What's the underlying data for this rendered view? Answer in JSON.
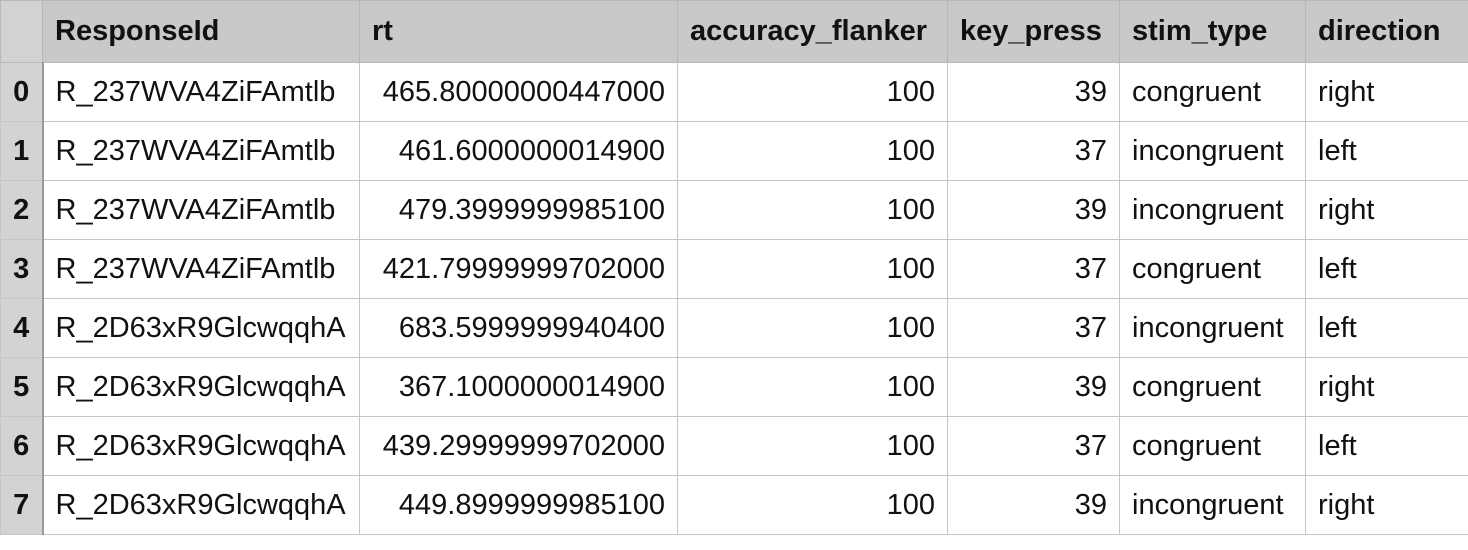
{
  "table": {
    "headers": [
      "ResponseId",
      "rt",
      "accuracy_flanker",
      "key_press",
      "stim_type",
      "direction"
    ],
    "rows": [
      {
        "index": "0",
        "ResponseId": "R_237WVA4ZiFAmtlb",
        "rt": "465.80000000447000",
        "accuracy_flanker": "100",
        "key_press": "39",
        "stim_type": "congruent",
        "direction": "right"
      },
      {
        "index": "1",
        "ResponseId": "R_237WVA4ZiFAmtlb",
        "rt": "461.6000000014900",
        "accuracy_flanker": "100",
        "key_press": "37",
        "stim_type": "incongruent",
        "direction": "left"
      },
      {
        "index": "2",
        "ResponseId": "R_237WVA4ZiFAmtlb",
        "rt": "479.3999999985100",
        "accuracy_flanker": "100",
        "key_press": "39",
        "stim_type": "incongruent",
        "direction": "right"
      },
      {
        "index": "3",
        "ResponseId": "R_237WVA4ZiFAmtlb",
        "rt": "421.79999999702000",
        "accuracy_flanker": "100",
        "key_press": "37",
        "stim_type": "congruent",
        "direction": "left"
      },
      {
        "index": "4",
        "ResponseId": "R_2D63xR9GlcwqqhA",
        "rt": "683.5999999940400",
        "accuracy_flanker": "100",
        "key_press": "37",
        "stim_type": "incongruent",
        "direction": "left"
      },
      {
        "index": "5",
        "ResponseId": "R_2D63xR9GlcwqqhA",
        "rt": "367.1000000014900",
        "accuracy_flanker": "100",
        "key_press": "39",
        "stim_type": "congruent",
        "direction": "right"
      },
      {
        "index": "6",
        "ResponseId": "R_2D63xR9GlcwqqhA",
        "rt": "439.29999999702000",
        "accuracy_flanker": "100",
        "key_press": "37",
        "stim_type": "congruent",
        "direction": "left"
      },
      {
        "index": "7",
        "ResponseId": "R_2D63xR9GlcwqqhA",
        "rt": "449.8999999985100",
        "accuracy_flanker": "100",
        "key_press": "39",
        "stim_type": "incongruent",
        "direction": "right"
      }
    ]
  }
}
